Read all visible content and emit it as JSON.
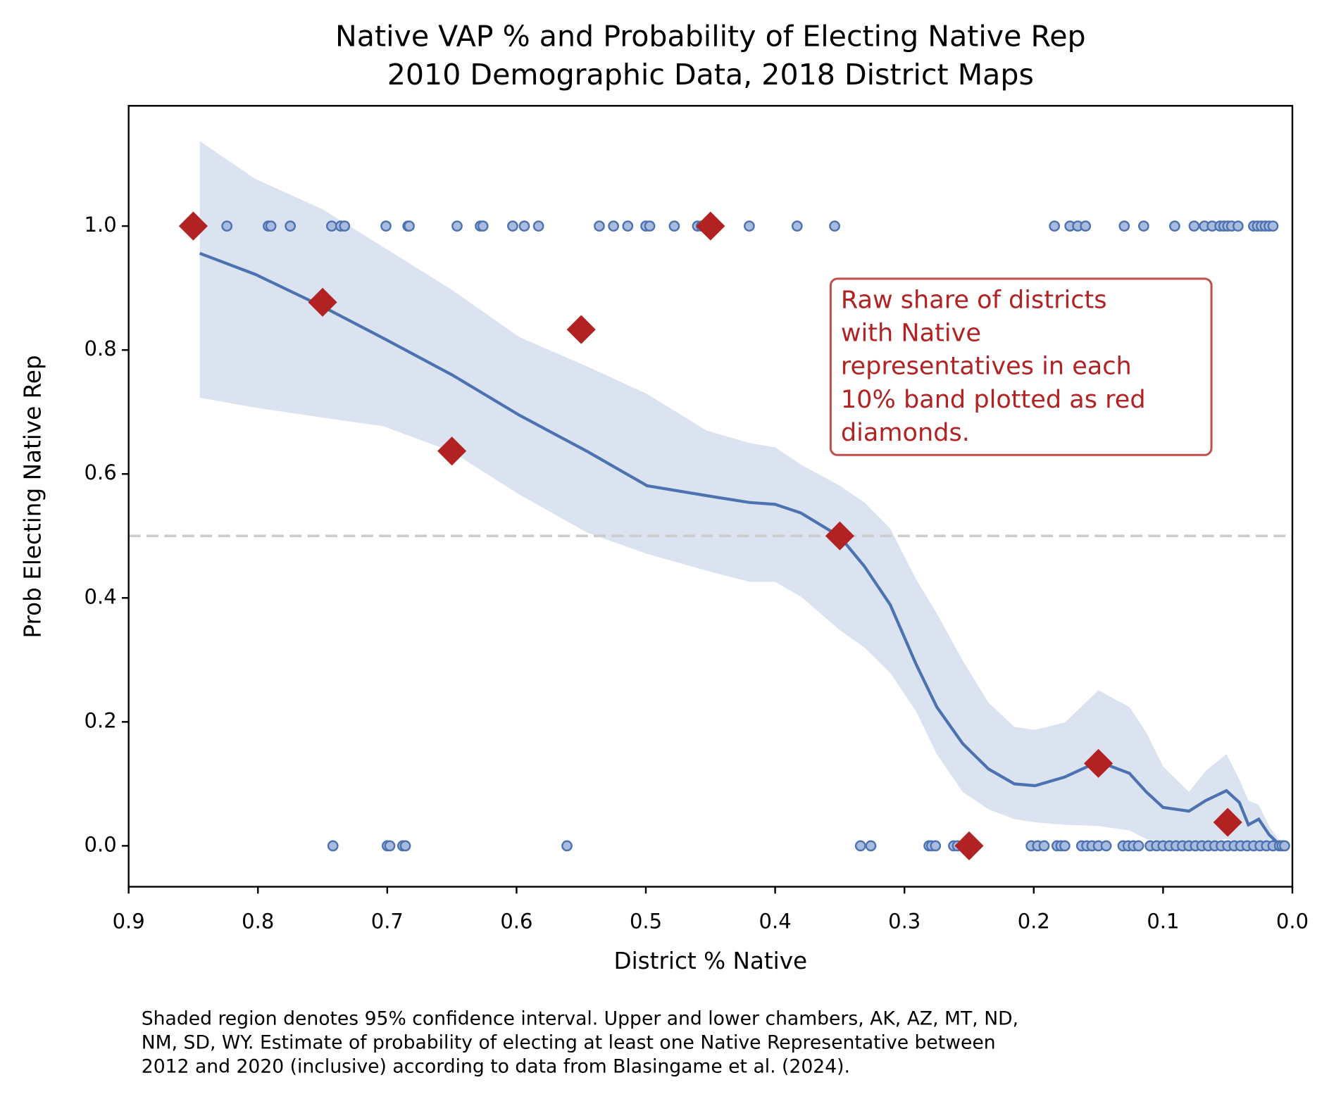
{
  "chart_data": {
    "type": "scatter",
    "title": "Native VAP % and Probability of Electing Native Rep",
    "subtitle": "2010 Demographic Data, 2018 District Maps",
    "xlabel": "District % Native",
    "ylabel": "Prob Electing Native Rep",
    "xlim": [
      0.9,
      0.0
    ],
    "ylim": [
      -0.066,
      1.194
    ],
    "xticks": [
      0.9,
      0.8,
      0.7,
      0.6,
      0.5,
      0.4,
      0.3,
      0.2,
      0.1,
      {
        "value": 0,
        "label": "0.0"
      }
    ],
    "yticks": [
      {
        "value": 0,
        "label": "0.0"
      },
      0.2,
      0.4,
      0.6,
      0.8,
      {
        "value": 1,
        "label": "1.0"
      }
    ],
    "reference_line": {
      "y": 0.5,
      "color": "#cccccc"
    },
    "series": [
      {
        "kind": "band",
        "color": "#dbe2f0",
        "x": [
          0.845,
          0.802,
          0.75,
          0.703,
          0.65,
          0.598,
          0.545,
          0.499,
          0.453,
          0.42,
          0.4,
          0.38,
          0.35,
          0.331,
          0.311,
          0.291,
          0.275,
          0.255,
          0.235,
          0.215,
          0.199,
          0.176,
          0.15,
          0.126,
          0.113,
          0.1,
          0.08,
          0.067,
          0.051,
          0.041,
          0.034,
          0.026,
          0.018,
          0.011,
          0.007
        ],
        "upper": [
          1.137,
          1.076,
          1.027,
          0.966,
          0.897,
          0.821,
          0.773,
          0.729,
          0.67,
          0.65,
          0.643,
          0.615,
          0.581,
          0.554,
          0.512,
          0.43,
          0.375,
          0.299,
          0.231,
          0.192,
          0.187,
          0.199,
          0.251,
          0.224,
          0.183,
          0.128,
          0.087,
          0.121,
          0.148,
          0.107,
          0.073,
          0.066,
          0.032,
          0.011,
          0.004
        ],
        "lower": [
          0.723,
          0.707,
          0.691,
          0.677,
          0.636,
          0.567,
          0.505,
          0.471,
          0.444,
          0.426,
          0.426,
          0.402,
          0.348,
          0.32,
          0.279,
          0.217,
          0.148,
          0.087,
          0.059,
          0.043,
          0.038,
          0.034,
          0.032,
          0.025,
          0.011,
          0.007,
          0.004,
          0.007,
          0.011,
          0.007,
          0.004,
          0.004,
          0.001,
          0,
          0
        ]
      },
      {
        "kind": "line",
        "color": "#4c72b0",
        "x": [
          0.845,
          0.802,
          0.75,
          0.703,
          0.65,
          0.598,
          0.545,
          0.499,
          0.453,
          0.42,
          0.4,
          0.38,
          0.35,
          0.331,
          0.311,
          0.291,
          0.275,
          0.255,
          0.235,
          0.215,
          0.199,
          0.176,
          0.15,
          0.126,
          0.113,
          0.1,
          0.08,
          0.067,
          0.051,
          0.041,
          0.034,
          0.026,
          0.018,
          0.011,
          0.007
        ],
        "values": [
          0.956,
          0.922,
          0.87,
          0.819,
          0.76,
          0.695,
          0.636,
          0.581,
          0.565,
          0.554,
          0.551,
          0.537,
          0.499,
          0.451,
          0.389,
          0.293,
          0.224,
          0.165,
          0.124,
          0.1,
          0.097,
          0.111,
          0.136,
          0.117,
          0.087,
          0.062,
          0.056,
          0.073,
          0.089,
          0.07,
          0.034,
          0.043,
          0.018,
          0.004,
          0
        ]
      },
      {
        "kind": "points",
        "color": "#a9bbde",
        "edge": "#4c72b0",
        "x": [
          0.824,
          0.792,
          0.79,
          0.775,
          0.743,
          0.736,
          0.733,
          0.701,
          0.684,
          0.683,
          0.646,
          0.628,
          0.626,
          0.603,
          0.594,
          0.583,
          0.536,
          0.525,
          0.514,
          0.5,
          0.497,
          0.478,
          0.46,
          0.457,
          0.42,
          0.383,
          0.354,
          0.184,
          0.172,
          0.166,
          0.16,
          0.13,
          0.115,
          0.091,
          0.076,
          0.068,
          0.062,
          0.056,
          0.053,
          0.05,
          0.047,
          0.042,
          0.03,
          0.027,
          0.024,
          0.021,
          0.018,
          0.015
        ],
        "values": [
          1,
          1,
          1,
          1,
          1,
          1,
          1,
          1,
          1,
          1,
          1,
          1,
          1,
          1,
          1,
          1,
          1,
          1,
          1,
          1,
          1,
          1,
          1,
          1,
          1,
          1,
          1,
          1,
          1,
          1,
          1,
          1,
          1,
          1,
          1,
          1,
          1,
          1,
          1,
          1,
          1,
          1,
          1,
          1,
          1,
          1,
          1,
          1
        ]
      },
      {
        "kind": "points",
        "color": "#a9bbde",
        "edge": "#4c72b0",
        "x": [
          0.742,
          0.7,
          0.698,
          0.688,
          0.686,
          0.561,
          0.334,
          0.326,
          0.281,
          0.279,
          0.276,
          0.262,
          0.259,
          0.255,
          0.202,
          0.197,
          0.192,
          0.182,
          0.179,
          0.176,
          0.163,
          0.159,
          0.155,
          0.15,
          0.144,
          0.131,
          0.127,
          0.123,
          0.119,
          0.11,
          0.105,
          0.1,
          0.095,
          0.09,
          0.085,
          0.08,
          0.075,
          0.07,
          0.065,
          0.06,
          0.055,
          0.05,
          0.045,
          0.04,
          0.035,
          0.03,
          0.025,
          0.02,
          0.015,
          0.01,
          0.008,
          0.006
        ],
        "values": [
          0,
          0,
          0,
          0,
          0,
          0,
          0,
          0,
          0,
          0,
          0,
          0,
          0,
          0,
          0,
          0,
          0,
          0,
          0,
          0,
          0,
          0,
          0,
          0,
          0,
          0,
          0,
          0,
          0,
          0,
          0,
          0,
          0,
          0,
          0,
          0,
          0,
          0,
          0,
          0,
          0,
          0,
          0,
          0,
          0,
          0,
          0,
          0,
          0,
          0,
          0,
          0
        ]
      },
      {
        "kind": "diamonds",
        "color": "#b22222",
        "x": [
          0.85,
          0.75,
          0.65,
          0.55,
          0.45,
          0.35,
          0.25,
          0.15,
          0.05
        ],
        "values": [
          1.0,
          0.877,
          0.637,
          0.833,
          1.0,
          0.5,
          0.0,
          0.133,
          0.038
        ]
      }
    ],
    "annotation": {
      "color": "#b22222",
      "lines": [
        "Raw share of districts",
        "with Native",
        "representatives in each",
        "10% band plotted as red",
        "diamonds."
      ]
    },
    "footnote": [
      "Shaded region denotes 95% confidence interval. Upper and lower chambers, AK, AZ, MT, ND,",
      "NM, SD, WY. Estimate of probability of electing at least one Native Representative between",
      "2012 and 2020 (inclusive) according to data from Blasingame et al. (2024)."
    ]
  }
}
